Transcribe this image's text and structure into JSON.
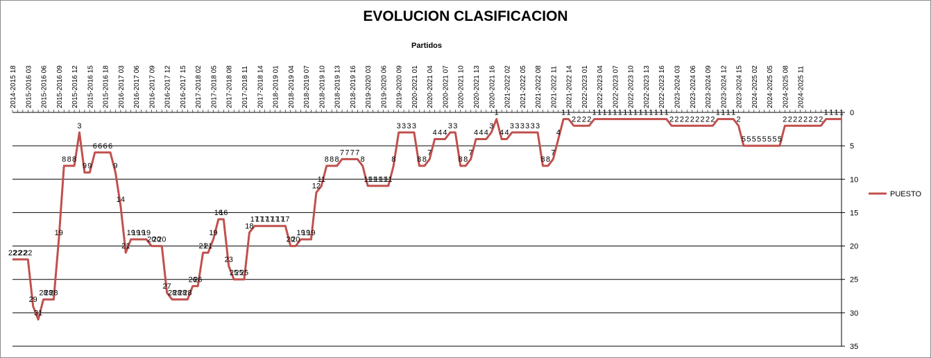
{
  "chart_data": {
    "type": "line",
    "title": "EVOLUCION CLASIFICACION",
    "xlabel": "Partidos",
    "ylabel": "",
    "ylim": [
      0,
      35
    ],
    "y_reversed": true,
    "y_ticks": [
      0,
      5,
      10,
      15,
      20,
      25,
      30,
      35
    ],
    "grid": true,
    "legend": "right",
    "line_color": "#c0504d",
    "x_tick_labels": [
      "2014-2015 18",
      "2015-2016 03",
      "2015-2016 06",
      "2015-2016 09",
      "2015-2016 12",
      "2015-2016 15",
      "2015-2016 18",
      "2016-2017 03",
      "2016-2017 06",
      "2016-2017 09",
      "2016-2017 12",
      "2016-2017 15",
      "2017-2018 02",
      "2017-2018 05",
      "2017-2018 08",
      "2017-2018 11",
      "2017-2018 14",
      "2018-2019 01",
      "2018-2019 04",
      "2018-2019 07",
      "2018-2019 10",
      "2018-2019 13",
      "2018-2019 16",
      "2019-2020 03",
      "2019-2020 06",
      "2019-2020 09",
      "2020-2021 01",
      "2020-2021 04",
      "2020-2021 07",
      "2020-2021 10",
      "2020-2021 13",
      "2020-2021 16",
      "2021-2022 02",
      "2021-2022 05",
      "2021-2022 08",
      "2021-2022 11",
      "2021-2022 14",
      "2022-2023 01",
      "2022-2023 04",
      "2022-2023 07",
      "2022-2023 10",
      "2022-2023 13",
      "2022-2023 16",
      "2023-2024 03",
      "2023-2024 06",
      "2023-2024 09",
      "2023-2024 12",
      "2023-2024 15",
      "2024-2025 02",
      "2024-2025 05",
      "2024-2025 08",
      "2024-2025 11"
    ],
    "series": [
      {
        "name": "PUESTO",
        "values": [
          22,
          22,
          22,
          22,
          29,
          31,
          28,
          28,
          28,
          19,
          8,
          8,
          8,
          3,
          9,
          9,
          6,
          6,
          6,
          6,
          9,
          14,
          21,
          19,
          19,
          19,
          19,
          20,
          20,
          20,
          27,
          28,
          28,
          28,
          28,
          26,
          26,
          21,
          21,
          19,
          16,
          16,
          23,
          25,
          25,
          25,
          18,
          17,
          17,
          17,
          17,
          17,
          17,
          17,
          20,
          20,
          19,
          19,
          19,
          12,
          11,
          8,
          8,
          8,
          7,
          7,
          7,
          7,
          8,
          11,
          11,
          11,
          11,
          11,
          8,
          3,
          3,
          3,
          3,
          8,
          8,
          7,
          4,
          4,
          4,
          3,
          3,
          8,
          8,
          7,
          4,
          4,
          4,
          3,
          1,
          4,
          4,
          3,
          3,
          3,
          3,
          3,
          3,
          8,
          8,
          7,
          4,
          1,
          1,
          2,
          2,
          2,
          2,
          1,
          1,
          1,
          1,
          1,
          1,
          1,
          1,
          1,
          1,
          1,
          1,
          1,
          1,
          1,
          2,
          2,
          2,
          2,
          2,
          2,
          2,
          2,
          2,
          1,
          1,
          1,
          1,
          2,
          5,
          5,
          5,
          5,
          5,
          5,
          5,
          5,
          2,
          2,
          2,
          2,
          2,
          2,
          2,
          2,
          1,
          1,
          1,
          1
        ]
      }
    ]
  }
}
